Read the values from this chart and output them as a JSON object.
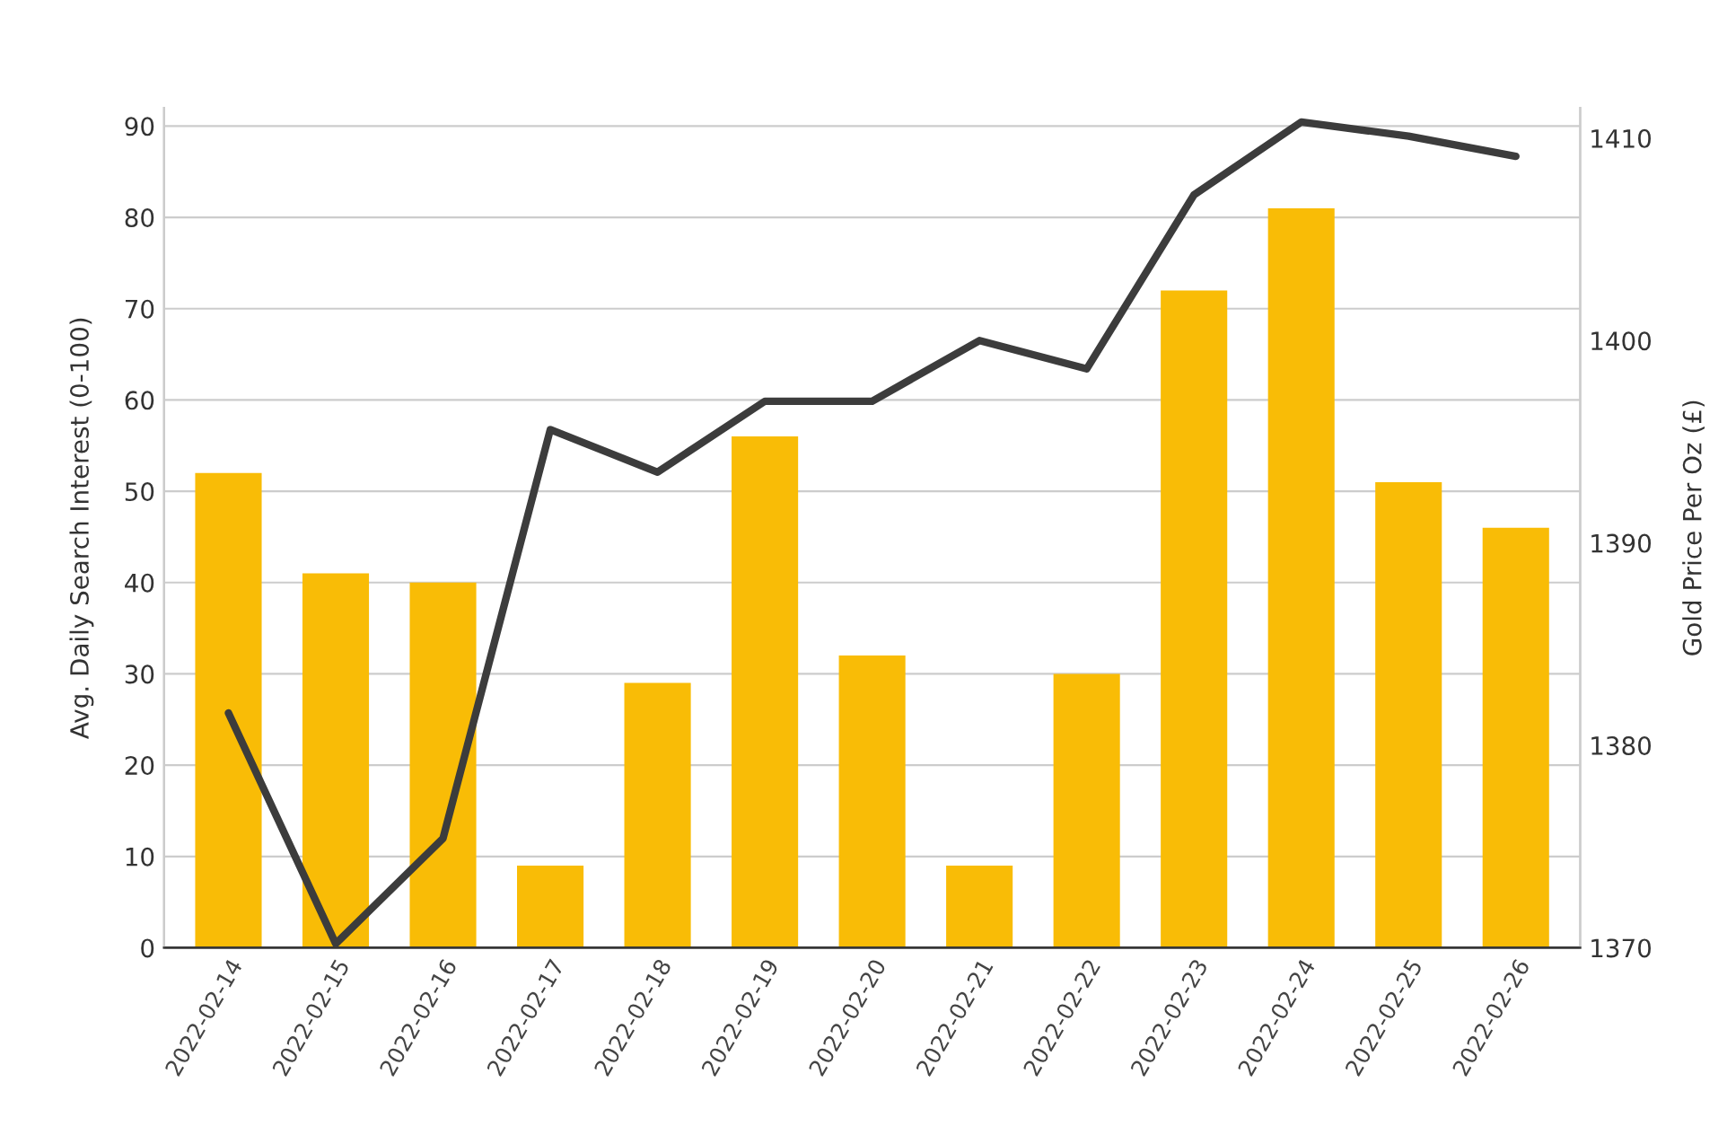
{
  "chart_data": {
    "type": "bar",
    "categories": [
      "2022-02-14",
      "2022-02-15",
      "2022-02-16",
      "2022-02-17",
      "2022-02-18",
      "2022-02-19",
      "2022-02-20",
      "2022-02-21",
      "2022-02-22",
      "2022-02-23",
      "2022-02-24",
      "2022-02-25",
      "2022-02-26"
    ],
    "series": [
      {
        "color": "#f9bc06",
        "values": [
          52,
          41,
          40,
          9,
          29,
          56,
          32,
          9,
          30,
          72,
          81,
          51,
          46
        ]
      },
      {
        "type": "line",
        "axis": "y2",
        "color": "#3c3c3c",
        "values": [
          1381.6,
          1370.2,
          1375.4,
          1395.6,
          1393.5,
          1397,
          1397,
          1400,
          1398.6,
          1407.2,
          1410.8,
          1410.1,
          1409.1
        ]
      }
    ],
    "ylabel": "Avg. Daily Search Interest (0-100)",
    "y2label": "Gold Price Per Oz (£)",
    "ylim": [
      0,
      92
    ],
    "yticks": [
      0,
      10,
      20,
      30,
      40,
      50,
      60,
      70,
      80,
      90
    ],
    "y2lim": [
      1370,
      1411.5
    ],
    "y2ticks": [
      1370,
      1380,
      1390,
      1400,
      1410
    ],
    "grid": "y",
    "marker": "none",
    "line_style": "solid"
  }
}
